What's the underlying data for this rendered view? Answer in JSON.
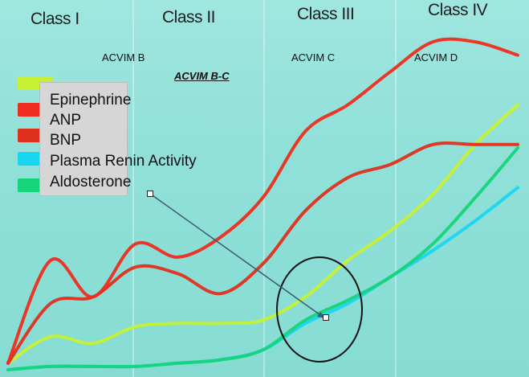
{
  "header": {
    "classes": [
      "Class I",
      "Class II",
      "Class III",
      "Class IV"
    ],
    "acvim": {
      "b": "ACVIM B",
      "bc": "ACVIM B-C",
      "c": "ACVIM C",
      "d": "ACVIM D"
    }
  },
  "legend": {
    "items": [
      {
        "label": "Epinephrine",
        "color": "#c8f032"
      },
      {
        "label": "ANP",
        "color": "#ee2d1e"
      },
      {
        "label": "BNP",
        "color": "#e0301e"
      },
      {
        "label": "Plasma Renin Activity",
        "color": "#19d6f0"
      },
      {
        "label": "Aldosterone",
        "color": "#16d47a"
      }
    ]
  },
  "chart_data": {
    "type": "line",
    "title": "",
    "xlabel": "",
    "ylabel": "",
    "x": [
      0,
      0.5,
      1,
      1.5,
      2,
      2.5,
      3,
      3.5,
      4,
      4.5,
      5,
      5.5,
      6
    ],
    "xlim": [
      0,
      6
    ],
    "ylim": [
      0,
      100
    ],
    "grid": false,
    "legend_position": "top-left",
    "series": [
      {
        "name": "ANP",
        "color": "#ee2d1e",
        "values": [
          2,
          33,
          22,
          38,
          34,
          40,
          52,
          72,
          80,
          90,
          99,
          99,
          95
        ]
      },
      {
        "name": "BNP",
        "color": "#e0301e",
        "values": [
          2,
          20,
          22,
          31,
          29,
          23,
          32,
          48,
          58,
          62,
          68,
          68,
          68
        ]
      },
      {
        "name": "Epinephrine",
        "color": "#c8f032",
        "values": [
          2,
          10,
          8,
          13,
          14,
          14,
          15,
          22,
          33,
          42,
          53,
          68,
          80
        ]
      },
      {
        "name": "Plasma Renin Activity",
        "color": "#19d6f0",
        "values": [
          0,
          1,
          1,
          1,
          2,
          3,
          6,
          14,
          20,
          28,
          36,
          45,
          55
        ]
      },
      {
        "name": "Aldosterone",
        "color": "#16d47a",
        "values": [
          0,
          1,
          1,
          1,
          2,
          3,
          6,
          15,
          21,
          28,
          38,
          52,
          67
        ]
      }
    ],
    "annotation": {
      "type": "ellipse",
      "note": "circled intersection near ACVIM C"
    }
  }
}
